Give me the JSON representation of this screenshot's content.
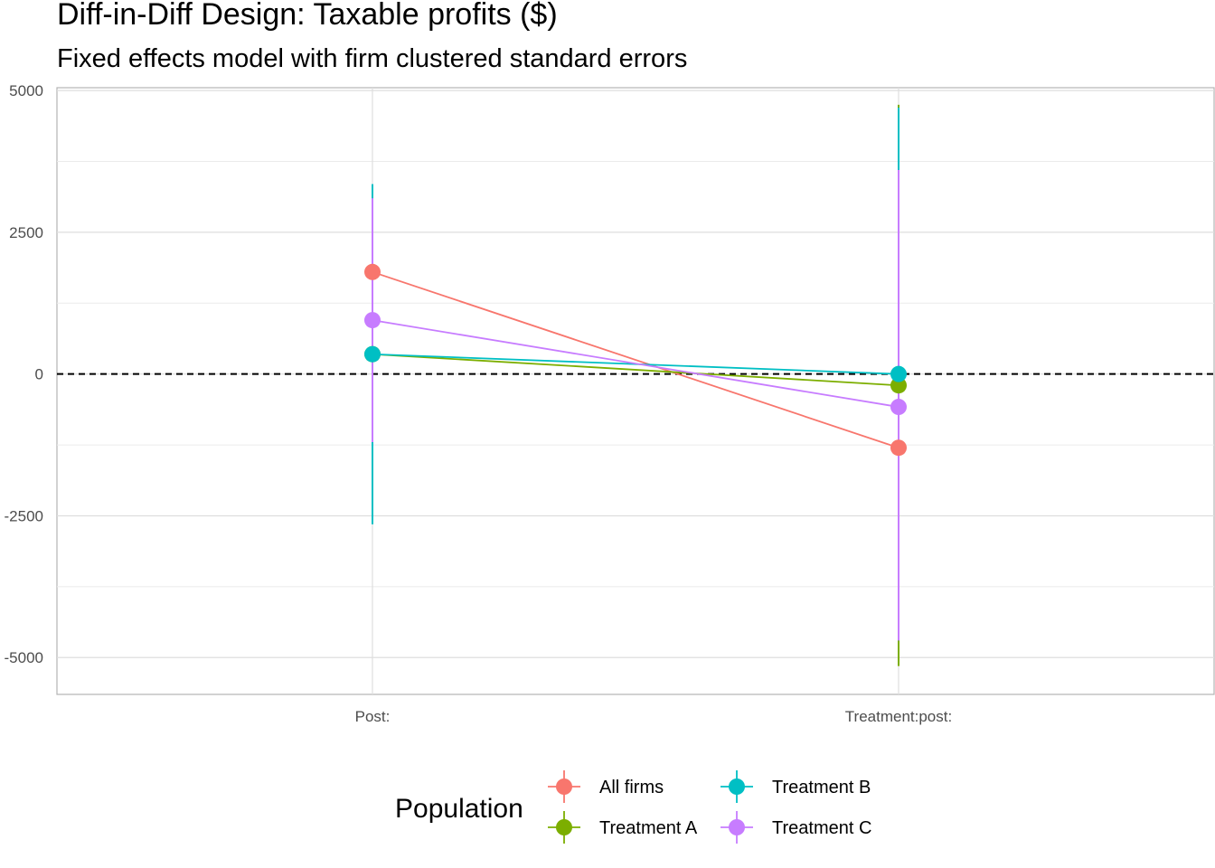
{
  "chart_data": {
    "type": "scatter",
    "title": "Diff-in-Diff Design: Taxable profits  ($)",
    "subtitle": "Fixed effects model with firm clustered standard errors",
    "xlabel": "",
    "ylabel": "",
    "categories": [
      "Post:",
      "Treatment:post:"
    ],
    "ylim": [
      -5650,
      5050
    ],
    "yticks": [
      -5000,
      -2500,
      0,
      2500,
      5000
    ],
    "ytick_labels": [
      "-5000",
      "-2500",
      "0",
      "2500",
      "5000"
    ],
    "reference_line": {
      "y": 0,
      "style": "dashed"
    },
    "grid": true,
    "legend": {
      "title": "Population",
      "position": "bottom"
    },
    "series": [
      {
        "name": "All firms",
        "color": "#F8766D",
        "values": [
          1800,
          -1300
        ],
        "lower": [
          1800,
          -1300
        ],
        "upper": [
          1800,
          -1300
        ]
      },
      {
        "name": "Treatment A",
        "color": "#7CAE00",
        "values": [
          350,
          -200
        ],
        "lower": [
          350,
          -5150
        ],
        "upper": [
          350,
          4750
        ]
      },
      {
        "name": "Treatment B",
        "color": "#00BFC4",
        "values": [
          350,
          0
        ],
        "lower": [
          -2650,
          -4700
        ],
        "upper": [
          3350,
          4700
        ]
      },
      {
        "name": "Treatment C",
        "color": "#C77CFF",
        "values": [
          950,
          -580
        ],
        "lower": [
          -1200,
          -4700
        ],
        "upper": [
          3100,
          3600
        ]
      }
    ]
  }
}
